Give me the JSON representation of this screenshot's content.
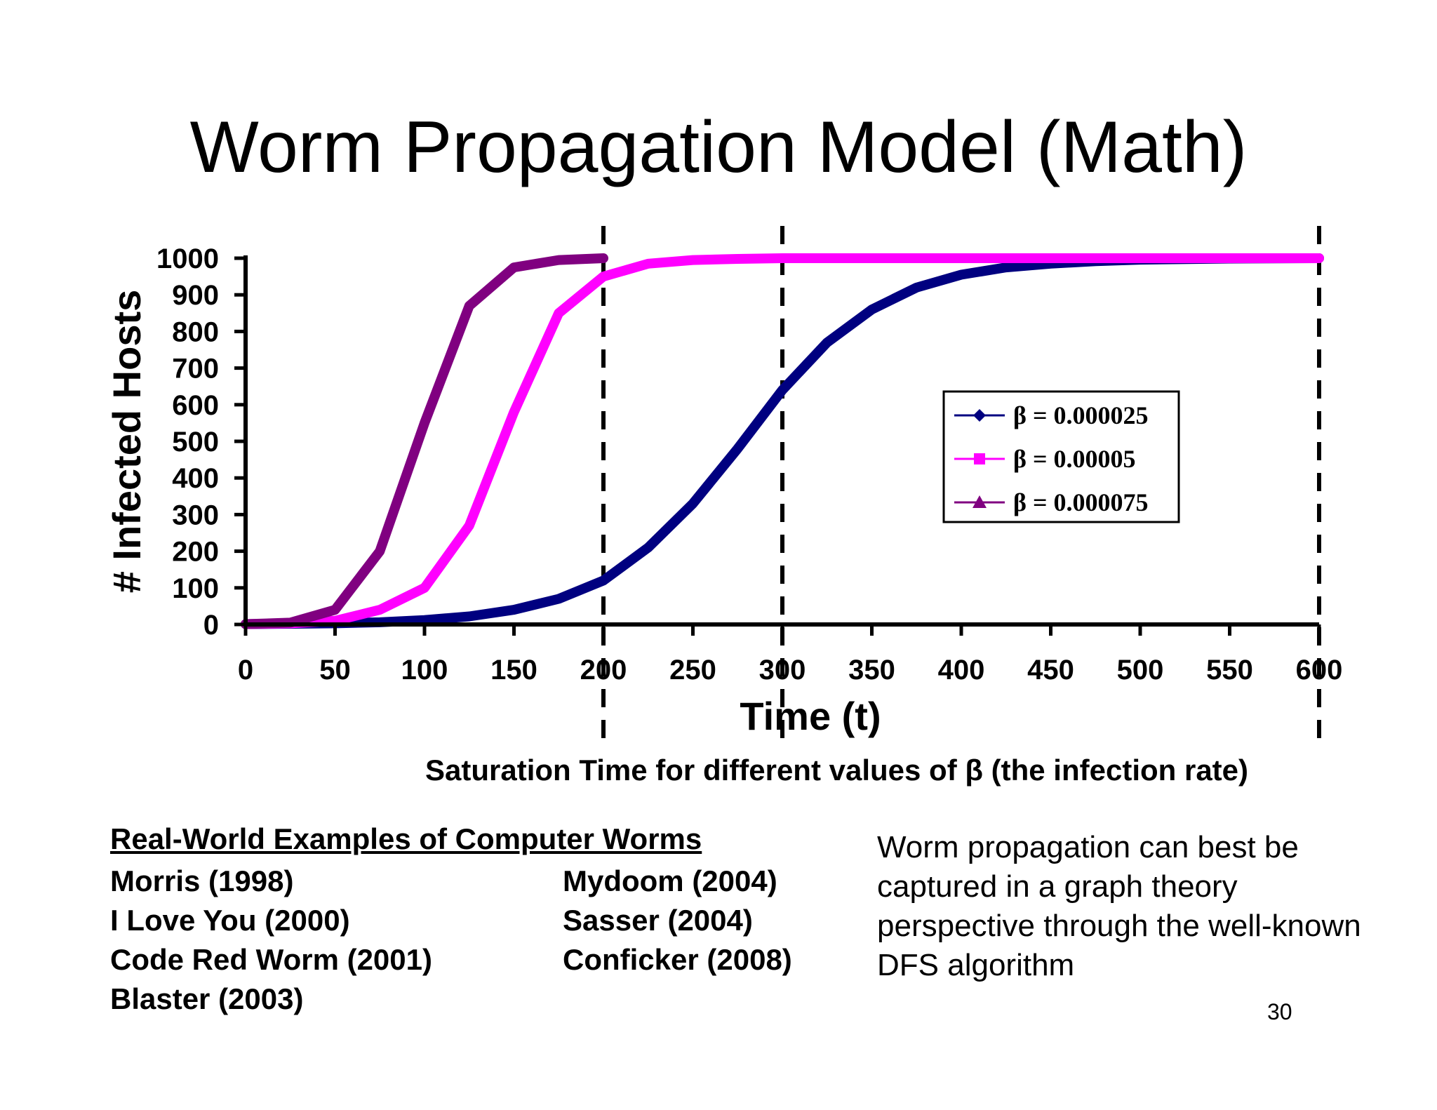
{
  "slide": {
    "title": "Worm Propagation Model (Math)",
    "caption": "Saturation Time for different values of β (the infection rate)",
    "examples": {
      "heading": "Real-World Examples of Computer Worms",
      "left": [
        "Morris (1998)",
        "I Love You (2000)",
        "Code Red Worm (2001)",
        "Blaster (2003)"
      ],
      "right": [
        "Mydoom (2004)",
        "Sasser (2004)",
        "Conficker (2008)"
      ]
    },
    "note": "Worm propagation can best be captured in a graph theory perspective through the well-known DFS algorithm",
    "page_number": "30"
  },
  "chart_data": {
    "type": "line",
    "xlabel": "Time (t)",
    "ylabel": "# Infected Hosts",
    "xlim": [
      0,
      600
    ],
    "ylim": [
      0,
      1000
    ],
    "x_ticks": [
      "0",
      "50",
      "100",
      "150",
      "200",
      "250",
      "300",
      "350",
      "400",
      "450",
      "500",
      "550",
      "600"
    ],
    "y_ticks": [
      "0",
      "100",
      "200",
      "300",
      "400",
      "500",
      "600",
      "700",
      "800",
      "900",
      "1000"
    ],
    "grid": false,
    "legend_position": "right",
    "vertical_markers": [
      200,
      300,
      600
    ],
    "series": [
      {
        "name": "β = 0.000025",
        "color": "#000080",
        "marker": "diamond",
        "x": [
          0,
          25,
          50,
          75,
          100,
          125,
          150,
          175,
          200,
          225,
          250,
          275,
          300,
          325,
          350,
          375,
          400,
          425,
          450,
          475,
          500,
          550,
          600
        ],
        "y": [
          1,
          2,
          3,
          6,
          12,
          22,
          40,
          70,
          120,
          210,
          330,
          480,
          640,
          770,
          860,
          920,
          955,
          975,
          985,
          992,
          996,
          999,
          1000
        ]
      },
      {
        "name": "β = 0.00005",
        "color": "#ff00ff",
        "marker": "square",
        "x": [
          0,
          25,
          50,
          75,
          100,
          125,
          150,
          175,
          200,
          225,
          250,
          275,
          300,
          350,
          400,
          450,
          500,
          550,
          600
        ],
        "y": [
          1,
          3,
          10,
          40,
          100,
          270,
          580,
          850,
          950,
          985,
          995,
          998,
          1000,
          1000,
          1000,
          1000,
          1000,
          1000,
          1000
        ]
      },
      {
        "name": "β = 0.000075",
        "color": "#800080",
        "marker": "triangle",
        "x": [
          0,
          25,
          50,
          75,
          100,
          125,
          150,
          175,
          200
        ],
        "y": [
          1,
          5,
          40,
          200,
          550,
          870,
          975,
          995,
          1000
        ]
      }
    ]
  }
}
